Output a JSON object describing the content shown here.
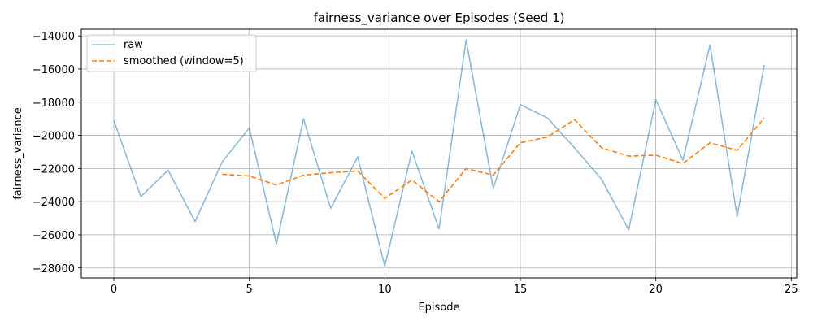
{
  "chart_data": {
    "type": "line",
    "title": "fairness_variance over Episodes (Seed 1)",
    "xlabel": "Episode",
    "ylabel": "fairness_variance",
    "xlim": [
      -1.2,
      25.2
    ],
    "ylim": [
      -28600,
      -13600
    ],
    "x_ticks": [
      0,
      5,
      10,
      15,
      20,
      25
    ],
    "y_ticks": [
      -28000,
      -26000,
      -24000,
      -22000,
      -20000,
      -18000,
      -16000,
      -14000
    ],
    "grid": true,
    "legend": "top-left",
    "series": [
      {
        "name": "raw",
        "color": "#1f77b4",
        "style": "solid",
        "x": [
          0,
          1,
          2,
          3,
          4,
          5,
          6,
          7,
          8,
          9,
          10,
          11,
          12,
          13,
          14,
          15,
          16,
          17,
          18,
          19,
          20,
          21,
          22,
          23,
          24
        ],
        "values": [
          -19100,
          -23700,
          -22100,
          -25200,
          -21600,
          -19550,
          -26550,
          -19000,
          -24400,
          -21300,
          -27900,
          -20950,
          -25650,
          -14250,
          -23200,
          -18150,
          -18950,
          -20750,
          -22650,
          -25700,
          -17850,
          -21500,
          -14550,
          -24900,
          -15750
        ]
      },
      {
        "name": "smoothed (window=5)",
        "color": "#ff7f0e",
        "style": "dashed",
        "x": [
          4,
          5,
          6,
          7,
          8,
          9,
          10,
          11,
          12,
          13,
          14,
          15,
          16,
          17,
          18,
          19,
          20,
          21,
          22,
          23,
          24
        ],
        "values": [
          -22350,
          -22450,
          -23000,
          -22400,
          -22250,
          -22150,
          -23800,
          -22700,
          -24000,
          -22000,
          -22400,
          -20450,
          -20100,
          -19050,
          -20750,
          -21250,
          -21200,
          -21700,
          -20450,
          -20900,
          -18950
        ]
      }
    ]
  }
}
